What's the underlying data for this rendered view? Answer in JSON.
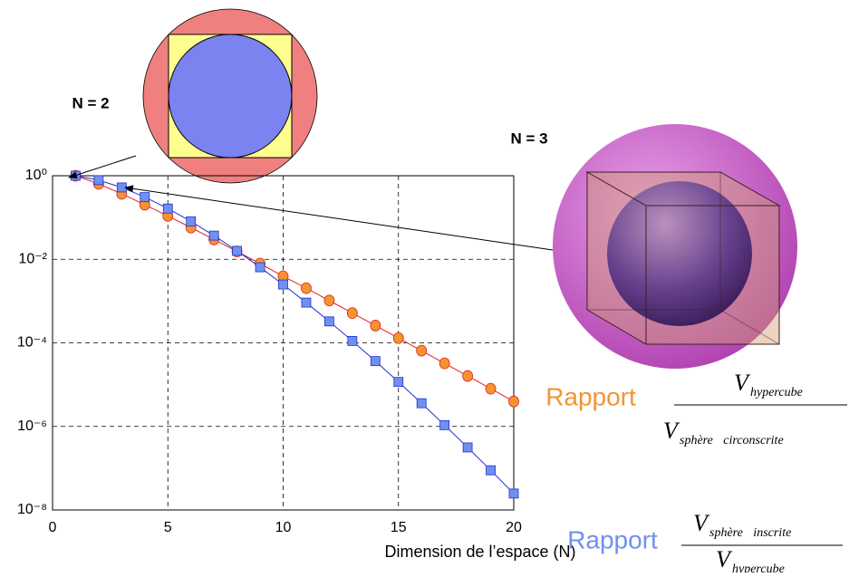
{
  "chart_data": {
    "type": "line",
    "xlabel": "Dimension de l’espace (N)",
    "x": [
      1,
      2,
      3,
      4,
      5,
      6,
      7,
      8,
      9,
      10,
      11,
      12,
      13,
      14,
      15,
      16,
      17,
      18,
      19,
      20
    ],
    "series": [
      {
        "name": "Rapport",
        "color": "#f39431",
        "line_color": "#e02020",
        "marker": "circle",
        "formula": {
          "numerator": "V",
          "numerator_sub": "hypercube",
          "denominator": "V",
          "denominator_sub": "sphère circonscrite"
        },
        "values": [
          1,
          0.637,
          0.368,
          0.203,
          0.109,
          0.0574,
          0.0299,
          0.0154,
          0.00789,
          0.00392,
          0.00204,
          0.00103,
          0.000517,
          0.000259,
          0.00013,
          6.49e-05,
          3.23e-05,
          1.61e-05,
          8e-06,
          3.96e-06
        ]
      },
      {
        "name": "Rapport",
        "color": "#7090f0",
        "line_color": "#2030d0",
        "marker": "square",
        "formula": {
          "numerator": "V",
          "numerator_sub": "sphère inscrite",
          "denominator": "V",
          "denominator_sub": "hypercube"
        },
        "values": [
          1,
          0.785,
          0.524,
          0.308,
          0.164,
          0.0807,
          0.0369,
          0.0159,
          0.00644,
          0.00249,
          0.000919,
          0.000326,
          0.000111,
          3.66e-05,
          1.16e-05,
          3.59e-06,
          1.07e-06,
          3.14e-07,
          8.91e-08,
          2.47e-08
        ]
      }
    ],
    "xlim": [
      0,
      20
    ],
    "xticks": [
      0,
      5,
      10,
      15,
      20
    ],
    "ylim": [
      1e-08,
      1
    ],
    "log_y": true,
    "yticks": [
      {
        "value": 1,
        "label": "10⁰"
      },
      {
        "value": 0.01,
        "label": "10⁻²"
      },
      {
        "value": 0.0001,
        "label": "10⁻⁴"
      },
      {
        "value": 1e-06,
        "label": "10⁻⁶"
      },
      {
        "value": 1e-08,
        "label": "10⁻⁸"
      }
    ],
    "grid": true,
    "annotations": [
      "N = 2",
      "N = 3"
    ]
  }
}
